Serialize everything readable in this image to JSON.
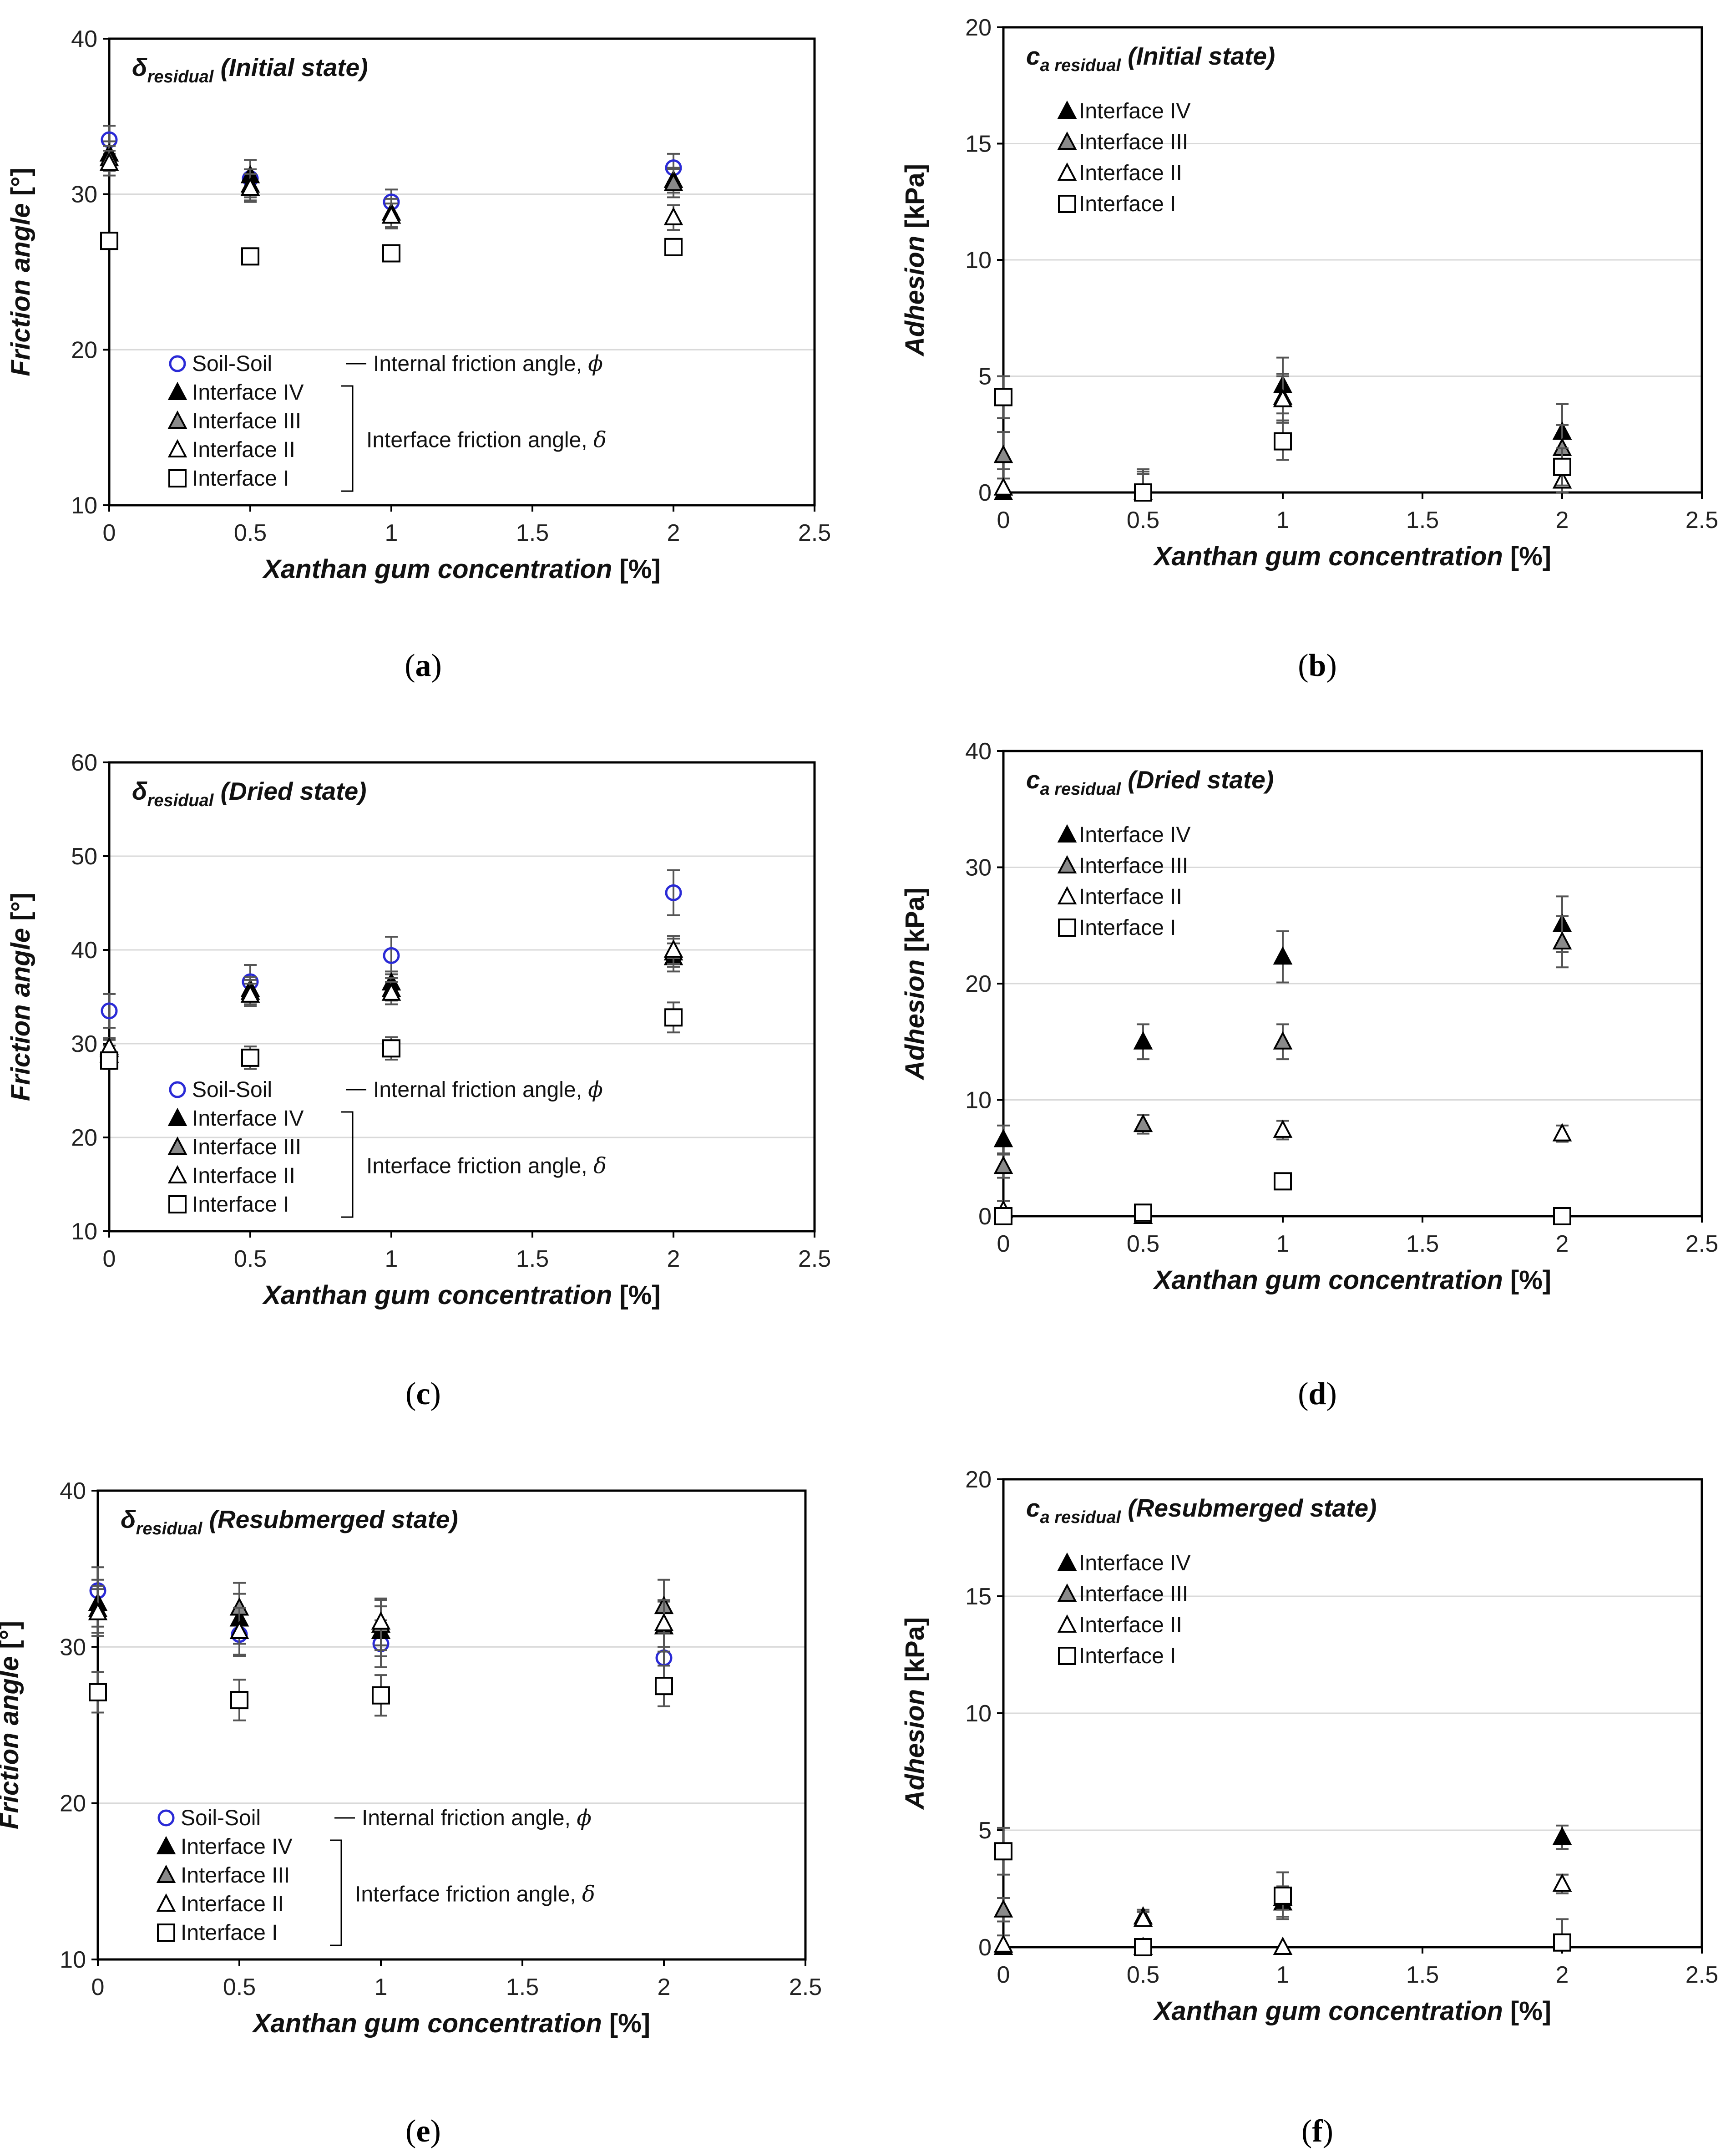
{
  "figure": {
    "x_axis_label": "Xanthan gum concentration",
    "x_axis_unit": "[%]",
    "internal_note": "Internal friction angle,",
    "internal_symbol": "ϕ",
    "interface_note": "Interface friction angle,",
    "interface_symbol": "δ",
    "legend_friction": [
      "Soil-Soil",
      "Interface IV",
      "Interface III",
      "Interface II",
      "Interface I"
    ],
    "legend_adhesion": [
      "Interface IV",
      "Interface III",
      "Interface II",
      "Interface I"
    ],
    "colors": {
      "soil": "#2a2ad6",
      "interface_iv": "#000000",
      "interface_iii": "#8a8a8a",
      "interface_ii": "#ffffff",
      "interface_i": "#ffffff",
      "grid": "#d9d9d9",
      "error_bar": "#555555"
    }
  },
  "chart_data": [
    {
      "type": "scatter",
      "panel": "a",
      "caption_letter": "a",
      "title_symbol": "δ",
      "title_sub": "residual",
      "title_state": " (Initial state)",
      "ylabel": "Friction angle",
      "yunit": "[°]",
      "xlabel": "Xanthan gum concentration [%]",
      "xlim": [
        0,
        2.5
      ],
      "ylim": [
        10,
        40
      ],
      "xticks": [
        "0",
        "0.5",
        "1",
        "1.5",
        "2",
        "2.5"
      ],
      "yticks": [
        "10",
        "20",
        "30",
        "40"
      ],
      "legend": "friction",
      "x": [
        0,
        0.5,
        1,
        2
      ],
      "series": [
        {
          "name": "Soil-Soil",
          "values": [
            33.5,
            31.0,
            29.5,
            31.7
          ],
          "errors": [
            0.9,
            1.2,
            0.8,
            0.9
          ]
        },
        {
          "name": "Interface IV",
          "values": [
            32.6,
            31.2,
            28.8,
            30.9
          ],
          "errors": [
            0.8,
            1.0,
            0.9,
            0.8
          ]
        },
        {
          "name": "Interface III",
          "values": [
            32.3,
            30.6,
            28.6,
            30.7
          ],
          "errors": [
            0.8,
            1.0,
            0.8,
            0.9
          ]
        },
        {
          "name": "Interface II",
          "values": [
            32.0,
            30.4,
            28.6,
            28.5
          ],
          "errors": [
            0.8,
            0.9,
            0.8,
            0.8
          ]
        },
        {
          "name": "Interface I",
          "values": [
            27.0,
            26.0,
            26.2,
            26.6
          ],
          "errors": [
            0.0,
            0.0,
            0.0,
            0.0
          ]
        }
      ]
    },
    {
      "type": "scatter",
      "panel": "b",
      "caption_letter": "b",
      "title_symbol": "c",
      "title_sub": "a residual",
      "title_state": " (Initial state)",
      "ylabel": "Adhesion",
      "yunit": "[kPa]",
      "xlabel": "Xanthan gum concentration [%]",
      "xlim": [
        0,
        2.5
      ],
      "ylim": [
        0,
        20
      ],
      "xticks": [
        "0",
        "0.5",
        "1",
        "1.5",
        "2",
        "2.5"
      ],
      "yticks": [
        "0",
        "5",
        "10",
        "15",
        "20"
      ],
      "legend": "adhesion",
      "x": [
        0,
        0.5,
        1,
        2
      ],
      "series": [
        {
          "name": "Interface IV",
          "values": [
            0.0,
            0.0,
            4.6,
            2.6
          ],
          "errors": [
            0.0,
            1.0,
            1.2,
            1.2
          ]
        },
        {
          "name": "Interface III",
          "values": [
            1.6,
            0.0,
            4.1,
            1.9
          ],
          "errors": [
            1.0,
            0.9,
            1.0,
            1.0
          ]
        },
        {
          "name": "Interface II",
          "values": [
            0.2,
            0.0,
            4.0,
            0.5
          ],
          "errors": [
            0.8,
            0.8,
            1.0,
            0.8
          ]
        },
        {
          "name": "Interface I",
          "values": [
            4.1,
            0.0,
            2.2,
            1.1
          ],
          "errors": [
            0.9,
            0.9,
            0.8,
            0.8
          ]
        }
      ]
    },
    {
      "type": "scatter",
      "panel": "c",
      "caption_letter": "c",
      "title_symbol": "δ",
      "title_sub": "residual",
      "title_state": " (Dried state)",
      "ylabel": "Friction angle",
      "yunit": "[°]",
      "xlabel": "Xanthan gum concentration [%]",
      "xlim": [
        0,
        2.5
      ],
      "ylim": [
        10,
        60
      ],
      "xticks": [
        "0",
        "0.5",
        "1",
        "1.5",
        "2",
        "2.5"
      ],
      "yticks": [
        "10",
        "20",
        "30",
        "40",
        "50",
        "60"
      ],
      "legend": "friction",
      "x": [
        0,
        0.5,
        1,
        2
      ],
      "series": [
        {
          "name": "Soil-Soil",
          "values": [
            33.5,
            36.6,
            39.4,
            46.1
          ],
          "errors": [
            1.8,
            1.8,
            2.0,
            2.4
          ]
        },
        {
          "name": "Interface IV",
          "values": [
            28.8,
            35.8,
            36.5,
            39.2
          ],
          "errors": [
            1.0,
            1.3,
            1.2,
            1.5
          ]
        },
        {
          "name": "Interface III",
          "values": [
            29.4,
            35.5,
            35.8,
            39.7
          ],
          "errors": [
            1.0,
            1.3,
            1.2,
            1.5
          ]
        },
        {
          "name": "Interface II",
          "values": [
            29.6,
            35.2,
            35.4,
            40.0
          ],
          "errors": [
            1.0,
            1.2,
            1.2,
            1.5
          ]
        },
        {
          "name": "Interface I",
          "values": [
            28.2,
            28.5,
            29.5,
            32.8
          ],
          "errors": [
            0.9,
            1.2,
            1.2,
            1.6
          ]
        }
      ]
    },
    {
      "type": "scatter",
      "panel": "d",
      "caption_letter": "d",
      "title_symbol": "c",
      "title_sub": "a residual",
      "title_state": " (Dried state)",
      "ylabel": "Adhesion",
      "yunit": "[kPa]",
      "xlabel": "Xanthan gum concentration [%]",
      "xlim": [
        0,
        2.5
      ],
      "ylim": [
        0,
        40
      ],
      "xticks": [
        "0",
        "0.5",
        "1",
        "1.5",
        "2",
        "2.5"
      ],
      "yticks": [
        "0",
        "10",
        "20",
        "30",
        "40"
      ],
      "legend": "adhesion",
      "x": [
        0,
        0.5,
        1,
        2
      ],
      "series": [
        {
          "name": "Interface IV",
          "values": [
            6.6,
            15.0,
            22.3,
            25.1
          ],
          "errors": [
            1.2,
            1.5,
            2.2,
            2.4
          ]
        },
        {
          "name": "Interface III",
          "values": [
            4.3,
            7.9,
            15.0,
            23.6
          ],
          "errors": [
            1.0,
            0.8,
            1.5,
            2.2
          ]
        },
        {
          "name": "Interface II",
          "values": [
            0.5,
            0.0,
            7.4,
            7.1
          ],
          "errors": [
            0.8,
            0.8,
            0.8,
            0.7
          ]
        },
        {
          "name": "Interface I",
          "values": [
            0.0,
            0.3,
            3.0,
            0.0
          ],
          "errors": [
            0.0,
            0.3,
            0.4,
            0.3
          ]
        }
      ]
    },
    {
      "type": "scatter",
      "panel": "e",
      "caption_letter": "e",
      "title_symbol": "δ",
      "title_sub": "residual",
      "title_state": " (Resubmerged state)",
      "ylabel": "Friction angle",
      "yunit": "[°]",
      "xlabel": "Xanthan gum concentration [%]",
      "xlim": [
        0,
        2.5
      ],
      "ylim": [
        10,
        40
      ],
      "xticks": [
        "0",
        "0.5",
        "1",
        "1.5",
        "2",
        "2.5"
      ],
      "yticks": [
        "10",
        "20",
        "30",
        "40"
      ],
      "legend": "friction",
      "x": [
        0,
        0.5,
        1,
        2
      ],
      "series": [
        {
          "name": "Soil-Soil",
          "values": [
            33.6,
            30.8,
            30.2,
            29.3
          ],
          "errors": [
            1.5,
            1.4,
            1.5,
            1.6
          ]
        },
        {
          "name": "Interface IV",
          "values": [
            32.8,
            31.8,
            31.0,
            31.3
          ],
          "errors": [
            1.5,
            1.6,
            1.6,
            1.6
          ]
        },
        {
          "name": "Interface III",
          "values": [
            32.4,
            32.5,
            31.4,
            32.6
          ],
          "errors": [
            1.5,
            1.6,
            1.6,
            1.7
          ]
        },
        {
          "name": "Interface II",
          "values": [
            32.2,
            31.0,
            31.6,
            31.5
          ],
          "errors": [
            1.5,
            1.5,
            1.5,
            1.5
          ]
        },
        {
          "name": "Interface I",
          "values": [
            27.1,
            26.6,
            26.9,
            27.5
          ],
          "errors": [
            1.3,
            1.3,
            1.3,
            1.3
          ]
        }
      ]
    },
    {
      "type": "scatter",
      "panel": "f",
      "caption_letter": "f",
      "title_symbol": "c",
      "title_sub": "a residual",
      "title_state": " (Resubmerged state)",
      "ylabel": "Adhesion",
      "yunit": "[kPa]",
      "xlabel": "Xanthan gum concentration [%]",
      "xlim": [
        0,
        2.5
      ],
      "ylim": [
        0,
        20
      ],
      "xticks": [
        "0",
        "0.5",
        "1",
        "1.5",
        "2",
        "2.5"
      ],
      "yticks": [
        "0",
        "5",
        "10",
        "15",
        "20"
      ],
      "legend": "adhesion",
      "x": [
        0,
        0.5,
        1,
        2
      ],
      "series": [
        {
          "name": "Interface IV",
          "values": [
            0.0,
            0.0,
            1.9,
            4.7
          ],
          "errors": [
            0.0,
            0.0,
            0.6,
            0.5
          ]
        },
        {
          "name": "Interface III",
          "values": [
            1.6,
            1.3,
            2.1,
            2.7
          ],
          "errors": [
            0.5,
            0.3,
            0.5,
            0.4
          ]
        },
        {
          "name": "Interface II",
          "values": [
            0.1,
            1.2,
            0.0,
            2.7
          ],
          "errors": [
            0.4,
            0.3,
            0.0,
            0.4
          ]
        },
        {
          "name": "Interface I",
          "values": [
            4.1,
            0.0,
            2.2,
            0.2
          ],
          "errors": [
            1.0,
            0.0,
            1.0,
            1.0
          ]
        }
      ]
    }
  ]
}
